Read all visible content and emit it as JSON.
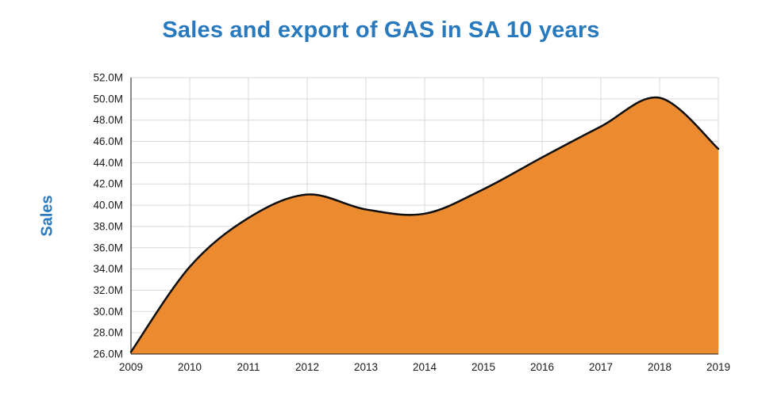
{
  "chart_data": {
    "type": "area",
    "title": "Sales and export of GAS in SA 10 years",
    "ylabel": "Sales",
    "xlabel": "",
    "categories": [
      "2009",
      "2010",
      "2011",
      "2012",
      "2013",
      "2014",
      "2015",
      "2016",
      "2017",
      "2018",
      "2019"
    ],
    "x": [
      2009,
      2010,
      2011,
      2012,
      2013,
      2014,
      2015,
      2016,
      2017,
      2018,
      2019
    ],
    "series": [
      {
        "name": "Sales",
        "values": [
          26.2,
          34.2,
          38.8,
          41.0,
          39.6,
          39.2,
          41.5,
          44.5,
          47.4,
          50.1,
          45.3
        ]
      }
    ],
    "ylim": [
      26,
      52
    ],
    "ytick_step": 2,
    "ytick_labels": [
      "26.0M",
      "28.0M",
      "30.0M",
      "32.0M",
      "34.0M",
      "36.0M",
      "38.0M",
      "40.0M",
      "42.0M",
      "44.0M",
      "46.0M",
      "48.0M",
      "50.0M",
      "52.0M"
    ],
    "grid": true,
    "legend": "none",
    "colors": {
      "fill": "#EB8A2F",
      "line": "#0d0d0d",
      "grid": "#d9d9d9",
      "axis": "#1a1a1a",
      "title": "#2879BE",
      "tick_text": "#1a1a1a"
    }
  }
}
